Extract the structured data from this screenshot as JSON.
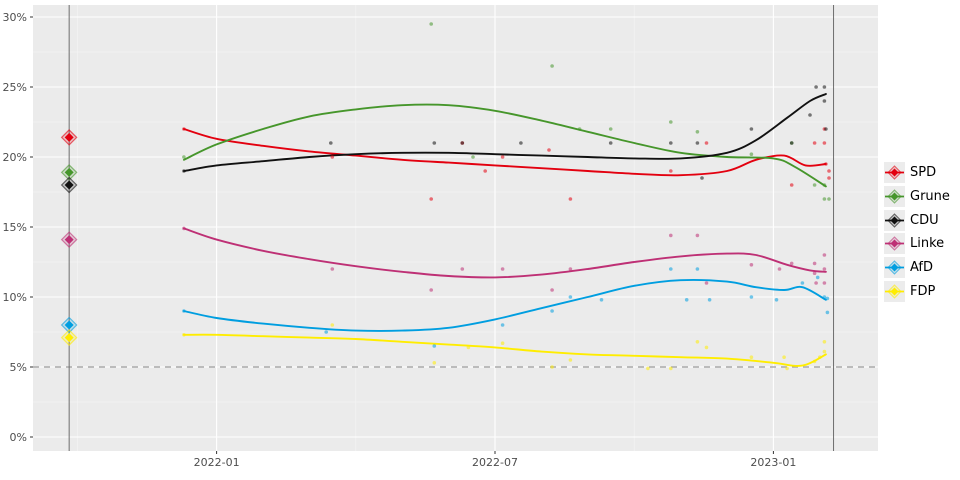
{
  "chart_data": {
    "type": "scatter+smoothed-lines (poll timeline with election result markers)",
    "x_axis": {
      "ticks": [
        {
          "label": "2022-01",
          "date": "2022-01-01"
        },
        {
          "label": "2022-07",
          "date": "2022-07-01"
        },
        {
          "label": "2023-01",
          "date": "2023-01-01"
        }
      ],
      "minor_grid_dates": [
        "2021-10-01",
        "2022-04-01",
        "2022-10-01"
      ],
      "range": [
        "2021-09-10",
        "2023-03-05"
      ]
    },
    "y_axis": {
      "ticks": [
        {
          "label": "0%",
          "value": 0
        },
        {
          "label": "5%",
          "value": 5
        },
        {
          "label": "10%",
          "value": 10
        },
        {
          "label": "15%",
          "value": 15
        },
        {
          "label": "20%",
          "value": 20
        },
        {
          "label": "25%",
          "value": 25
        },
        {
          "label": "30%",
          "value": 30
        }
      ],
      "minor_grid_values": [
        2.5,
        7.5,
        12.5,
        17.5,
        22.5,
        27.5
      ],
      "range": [
        0,
        30
      ]
    },
    "threshold_line": {
      "value": 5,
      "style": "dashed",
      "color": "#9e9e9e"
    },
    "vertical_marker_dates": [
      "2021-09-26",
      "2023-02-10"
    ],
    "result_markers_date": "2021-09-26",
    "legend_position": "right",
    "grid": true,
    "series": [
      {
        "name": "SPD",
        "color": "#e3000f",
        "result_marker": 21.4,
        "trend": [
          [
            "2021-12-10",
            22.0
          ],
          [
            "2022-01-01",
            21.3
          ],
          [
            "2022-02-01",
            20.8
          ],
          [
            "2022-03-01",
            20.4
          ],
          [
            "2022-04-01",
            20.1
          ],
          [
            "2022-05-01",
            19.8
          ],
          [
            "2022-06-01",
            19.6
          ],
          [
            "2022-07-01",
            19.4
          ],
          [
            "2022-08-01",
            19.2
          ],
          [
            "2022-09-01",
            19.0
          ],
          [
            "2022-10-01",
            18.8
          ],
          [
            "2022-11-01",
            18.7
          ],
          [
            "2022-12-01",
            19.0
          ],
          [
            "2022-12-20",
            19.8
          ],
          [
            "2023-01-08",
            20.1
          ],
          [
            "2023-01-22",
            19.4
          ],
          [
            "2023-02-05",
            19.5
          ]
        ],
        "points": [
          [
            "2021-12-10",
            22
          ],
          [
            "2022-03-16",
            20
          ],
          [
            "2022-05-20",
            17
          ],
          [
            "2022-06-10",
            21
          ],
          [
            "2022-06-25",
            19
          ],
          [
            "2022-07-06",
            20
          ],
          [
            "2022-08-06",
            20.5
          ],
          [
            "2022-08-20",
            17
          ],
          [
            "2022-10-25",
            19
          ],
          [
            "2022-11-18",
            21
          ],
          [
            "2023-01-13",
            18
          ],
          [
            "2023-01-28",
            21
          ],
          [
            "2023-02-04",
            22
          ],
          [
            "2023-02-04",
            21
          ],
          [
            "2023-02-05",
            19.5
          ],
          [
            "2023-02-07",
            19
          ],
          [
            "2023-02-07",
            18.5
          ]
        ]
      },
      {
        "name": "Grune",
        "color": "#46962b",
        "result_marker": 18.9,
        "trend": [
          [
            "2021-12-10",
            19.8
          ],
          [
            "2022-01-01",
            20.9
          ],
          [
            "2022-02-01",
            22.0
          ],
          [
            "2022-03-01",
            22.9
          ],
          [
            "2022-04-01",
            23.4
          ],
          [
            "2022-05-01",
            23.7
          ],
          [
            "2022-06-01",
            23.7
          ],
          [
            "2022-07-01",
            23.3
          ],
          [
            "2022-08-01",
            22.6
          ],
          [
            "2022-09-01",
            21.8
          ],
          [
            "2022-10-01",
            21.0
          ],
          [
            "2022-11-01",
            20.3
          ],
          [
            "2022-12-01",
            20.0
          ],
          [
            "2023-01-01",
            19.9
          ],
          [
            "2023-01-15",
            19.3
          ],
          [
            "2023-02-05",
            17.9
          ]
        ],
        "points": [
          [
            "2021-12-10",
            20
          ],
          [
            "2022-05-20",
            29.5
          ],
          [
            "2022-06-17",
            20
          ],
          [
            "2022-08-08",
            26.5
          ],
          [
            "2022-08-26",
            22
          ],
          [
            "2022-09-16",
            22
          ],
          [
            "2022-10-25",
            22.5
          ],
          [
            "2022-11-12",
            21.8
          ],
          [
            "2022-12-17",
            20.2
          ],
          [
            "2023-01-13",
            21
          ],
          [
            "2023-01-28",
            18
          ],
          [
            "2023-02-04",
            18
          ],
          [
            "2023-02-04",
            17
          ],
          [
            "2023-02-07",
            17
          ]
        ]
      },
      {
        "name": "CDU",
        "color": "#111111",
        "result_marker": 18.0,
        "trend": [
          [
            "2021-12-10",
            19.0
          ],
          [
            "2022-01-01",
            19.4
          ],
          [
            "2022-02-01",
            19.7
          ],
          [
            "2022-03-01",
            20.0
          ],
          [
            "2022-04-01",
            20.2
          ],
          [
            "2022-05-01",
            20.3
          ],
          [
            "2022-06-01",
            20.3
          ],
          [
            "2022-07-01",
            20.2
          ],
          [
            "2022-08-01",
            20.1
          ],
          [
            "2022-09-01",
            20.0
          ],
          [
            "2022-10-01",
            19.9
          ],
          [
            "2022-11-01",
            19.9
          ],
          [
            "2022-12-01",
            20.3
          ],
          [
            "2022-12-20",
            21.2
          ],
          [
            "2023-01-10",
            22.8
          ],
          [
            "2023-01-25",
            24.0
          ],
          [
            "2023-02-05",
            24.5
          ]
        ],
        "points": [
          [
            "2021-12-10",
            19
          ],
          [
            "2022-03-15",
            21
          ],
          [
            "2022-05-22",
            21
          ],
          [
            "2022-06-10",
            21
          ],
          [
            "2022-07-18",
            21
          ],
          [
            "2022-09-16",
            21
          ],
          [
            "2022-10-25",
            21
          ],
          [
            "2022-11-12",
            21
          ],
          [
            "2022-11-15",
            18.5
          ],
          [
            "2022-12-17",
            22
          ],
          [
            "2023-01-13",
            21
          ],
          [
            "2023-01-25",
            23
          ],
          [
            "2023-01-29",
            25
          ],
          [
            "2023-02-04",
            25
          ],
          [
            "2023-02-04",
            24
          ],
          [
            "2023-02-05",
            22
          ]
        ]
      },
      {
        "name": "Linke",
        "color": "#be3075",
        "result_marker": 14.1,
        "trend": [
          [
            "2021-12-10",
            14.9
          ],
          [
            "2022-01-01",
            14.1
          ],
          [
            "2022-02-01",
            13.3
          ],
          [
            "2022-03-01",
            12.7
          ],
          [
            "2022-04-01",
            12.2
          ],
          [
            "2022-05-01",
            11.8
          ],
          [
            "2022-06-01",
            11.5
          ],
          [
            "2022-07-01",
            11.4
          ],
          [
            "2022-08-01",
            11.6
          ],
          [
            "2022-09-01",
            12.0
          ],
          [
            "2022-10-01",
            12.5
          ],
          [
            "2022-11-01",
            12.9
          ],
          [
            "2022-12-01",
            13.1
          ],
          [
            "2022-12-20",
            13.0
          ],
          [
            "2023-01-10",
            12.3
          ],
          [
            "2023-01-25",
            11.9
          ],
          [
            "2023-02-05",
            11.8
          ]
        ],
        "points": [
          [
            "2021-12-10",
            14.9
          ],
          [
            "2022-03-16",
            12
          ],
          [
            "2022-05-20",
            10.5
          ],
          [
            "2022-06-10",
            12
          ],
          [
            "2022-07-06",
            12
          ],
          [
            "2022-08-08",
            10.5
          ],
          [
            "2022-08-20",
            12
          ],
          [
            "2022-10-25",
            14.4
          ],
          [
            "2022-11-12",
            14.4
          ],
          [
            "2022-11-18",
            11
          ],
          [
            "2022-12-17",
            12.3
          ],
          [
            "2023-01-05",
            12
          ],
          [
            "2023-01-13",
            12.4
          ],
          [
            "2023-01-28",
            12.4
          ],
          [
            "2023-01-28",
            11.7
          ],
          [
            "2023-01-29",
            11
          ],
          [
            "2023-02-04",
            13
          ],
          [
            "2023-02-04",
            12
          ],
          [
            "2023-02-04",
            11
          ]
        ]
      },
      {
        "name": "AfD",
        "color": "#009ee0",
        "result_marker": 8.0,
        "trend": [
          [
            "2021-12-10",
            9.0
          ],
          [
            "2022-01-01",
            8.5
          ],
          [
            "2022-02-01",
            8.1
          ],
          [
            "2022-03-01",
            7.8
          ],
          [
            "2022-04-01",
            7.6
          ],
          [
            "2022-05-01",
            7.6
          ],
          [
            "2022-06-01",
            7.8
          ],
          [
            "2022-07-01",
            8.4
          ],
          [
            "2022-08-01",
            9.2
          ],
          [
            "2022-09-01",
            10.0
          ],
          [
            "2022-10-01",
            10.8
          ],
          [
            "2022-11-01",
            11.2
          ],
          [
            "2022-12-01",
            11.1
          ],
          [
            "2022-12-20",
            10.7
          ],
          [
            "2023-01-08",
            10.5
          ],
          [
            "2023-01-20",
            10.7
          ],
          [
            "2023-02-05",
            9.8
          ]
        ],
        "points": [
          [
            "2021-12-10",
            9
          ],
          [
            "2022-03-12",
            7.5
          ],
          [
            "2022-05-22",
            6.5
          ],
          [
            "2022-07-06",
            8
          ],
          [
            "2022-08-08",
            9
          ],
          [
            "2022-08-20",
            10
          ],
          [
            "2022-09-10",
            9.8
          ],
          [
            "2022-10-25",
            12
          ],
          [
            "2022-11-05",
            9.8
          ],
          [
            "2022-11-12",
            12
          ],
          [
            "2022-11-20",
            9.8
          ],
          [
            "2022-12-17",
            10
          ],
          [
            "2023-01-03",
            9.8
          ],
          [
            "2023-01-20",
            11
          ],
          [
            "2023-01-30",
            11.4
          ],
          [
            "2023-02-04",
            10
          ],
          [
            "2023-02-06",
            9.9
          ],
          [
            "2023-02-06",
            8.9
          ]
        ]
      },
      {
        "name": "FDP",
        "color": "#ffed00",
        "result_marker": 7.1,
        "trend": [
          [
            "2021-12-10",
            7.3
          ],
          [
            "2022-01-01",
            7.3
          ],
          [
            "2022-02-01",
            7.2
          ],
          [
            "2022-03-01",
            7.1
          ],
          [
            "2022-04-01",
            7.0
          ],
          [
            "2022-05-01",
            6.8
          ],
          [
            "2022-06-01",
            6.6
          ],
          [
            "2022-07-01",
            6.4
          ],
          [
            "2022-08-01",
            6.1
          ],
          [
            "2022-09-01",
            5.9
          ],
          [
            "2022-10-01",
            5.8
          ],
          [
            "2022-11-01",
            5.7
          ],
          [
            "2022-12-01",
            5.6
          ],
          [
            "2023-01-01",
            5.3
          ],
          [
            "2023-01-20",
            5.1
          ],
          [
            "2023-02-05",
            5.9
          ]
        ],
        "points": [
          [
            "2021-12-10",
            7.3
          ],
          [
            "2022-03-16",
            8
          ],
          [
            "2022-05-22",
            5.3
          ],
          [
            "2022-06-14",
            6.4
          ],
          [
            "2022-07-06",
            6.7
          ],
          [
            "2022-08-08",
            5
          ],
          [
            "2022-08-20",
            5.5
          ],
          [
            "2022-10-10",
            4.9
          ],
          [
            "2022-10-25",
            4.9
          ],
          [
            "2022-11-12",
            6.8
          ],
          [
            "2022-11-18",
            6.4
          ],
          [
            "2022-12-17",
            5.7
          ],
          [
            "2023-01-08",
            5.7
          ],
          [
            "2023-01-10",
            4.9
          ],
          [
            "2023-01-28",
            5.4
          ],
          [
            "2023-02-01",
            5.7
          ],
          [
            "2023-02-04",
            6.8
          ],
          [
            "2023-02-04",
            6.1
          ]
        ]
      }
    ]
  }
}
